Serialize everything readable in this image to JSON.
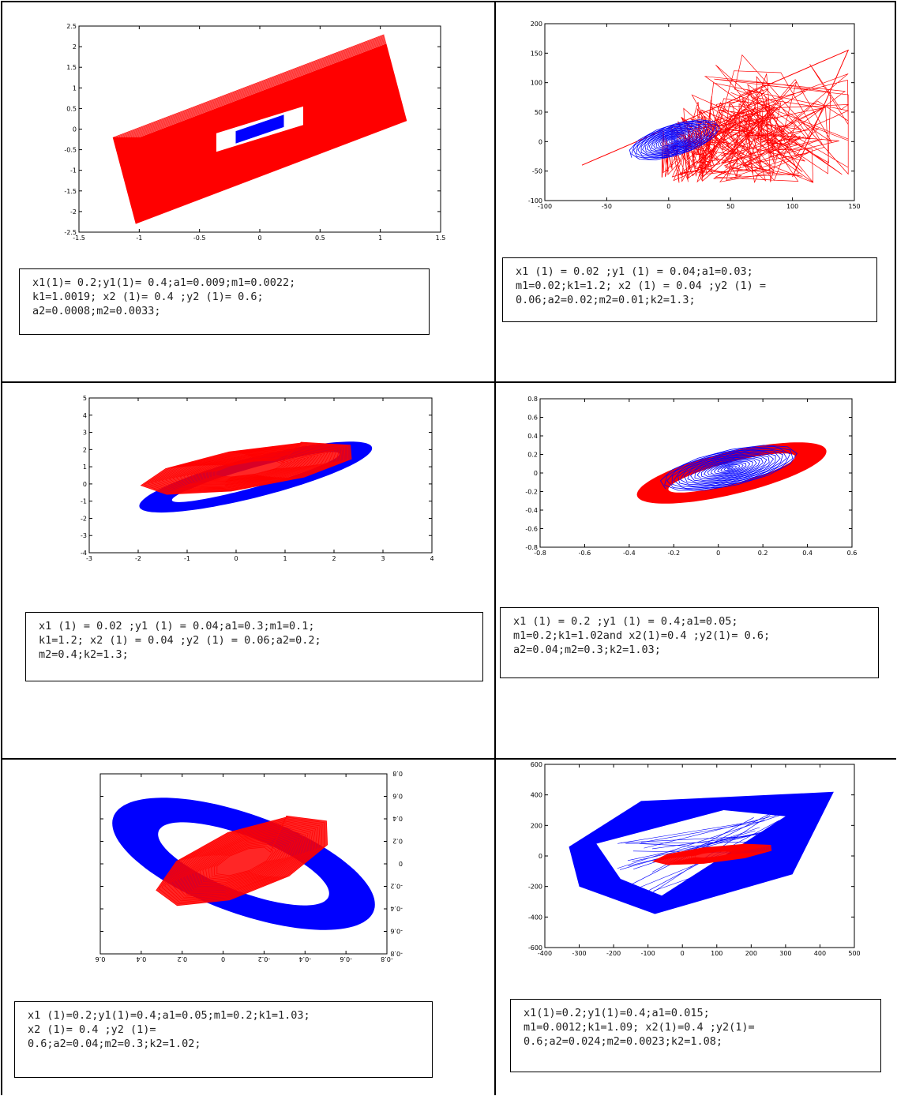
{
  "colors": {
    "red": "#ff0000",
    "blue": "#0000ff",
    "frame": "#000000"
  },
  "chart_data": [
    {
      "id": "p1",
      "type": "line",
      "title": "",
      "xlabel": "",
      "ylabel": "",
      "xlim": [
        -1.5,
        1.5
      ],
      "ylim": [
        -2.5,
        2.5
      ],
      "xticks": [
        "-1.5",
        "-1",
        "-0.5",
        "0",
        "0.5",
        "1",
        "1.5"
      ],
      "yticks": [
        "2.5",
        "2",
        "1.5",
        "1",
        "0.5",
        "0",
        "-0.5",
        "-1",
        "-1.5",
        "-2",
        "-2.5"
      ],
      "series": [
        {
          "color": "#ff0000",
          "shape": "rotated_band",
          "outer": [
            [
              -1.22,
              -0.2
            ],
            [
              1.03,
              2.3
            ],
            [
              1.22,
              0.2
            ],
            [
              -1.03,
              -2.3
            ]
          ],
          "inner": [
            [
              -0.36,
              -0.55
            ],
            [
              0.36,
              0.55
            ]
          ]
        },
        {
          "color": "#0000ff",
          "shape": "filled_rhombus",
          "points": [
            [
              -0.2,
              -0.35
            ],
            [
              0.2,
              0.35
            ]
          ]
        }
      ],
      "params": "x1(1)= 0.2;y1(1)= 0.4;a1=0.009;m1=0.0022;\nk1=1.0019; x2 (1)= 0.4 ;y2 (1)= 0.6;\na2=0.0008;m2=0.0033;"
    },
    {
      "id": "p2",
      "type": "line",
      "title": "",
      "xlabel": "",
      "ylabel": "",
      "xlim": [
        -100,
        150
      ],
      "ylim": [
        -100,
        200
      ],
      "xticks": [
        "-100",
        "-50",
        "0",
        "50",
        "100",
        "150"
      ],
      "yticks": [
        "200",
        "150",
        "100",
        "50",
        "0",
        "-50",
        "-100"
      ],
      "series": [
        {
          "color": "#ff0000",
          "shape": "chaotic_web",
          "extent": [
            [
              -70,
              -70
            ],
            [
              145,
              155
            ]
          ]
        },
        {
          "color": "#0000ff",
          "shape": "spiral",
          "extent": [
            [
              -30,
              -40
            ],
            [
              40,
              45
            ]
          ]
        }
      ],
      "params": "x1 (1) = 0.02 ;y1 (1) = 0.04;a1=0.03;\nm1=0.02;k1=1.2; x2 (1) = 0.04 ;y2 (1) =\n0.06;a2=0.02;m2=0.01;k2=1.3;"
    },
    {
      "id": "p3",
      "type": "line",
      "title": "",
      "xlabel": "",
      "ylabel": "",
      "xlim": [
        -3,
        4
      ],
      "ylim": [
        -4,
        5
      ],
      "xticks": [
        "-3",
        "-2",
        "-1",
        "0",
        "1",
        "2",
        "3",
        "4"
      ],
      "yticks": [
        "5",
        "4",
        "3",
        "2",
        "1",
        "0",
        "-1",
        "-2",
        "-3",
        "-4"
      ],
      "series": [
        {
          "color": "#0000ff",
          "shape": "elliptical_ring",
          "center": [
            0.4,
            0.4
          ],
          "rx": 3.0,
          "ry": 0.95,
          "angle_deg": 40,
          "width": 0.5
        },
        {
          "color": "#ff0000",
          "shape": "filled_blob",
          "extent": [
            [
              -2.0,
              -1.1
            ],
            [
              2.5,
              2.9
            ]
          ]
        }
      ],
      "params": "x1 (1) = 0.02 ;y1 (1) = 0.04;a1=0.3;m1=0.1;\nk1=1.2; x2 (1) = 0.04 ;y2 (1) = 0.06;a2=0.2;\nm2=0.4;k2=1.3;"
    },
    {
      "id": "p4",
      "type": "line",
      "title": "",
      "xlabel": "",
      "ylabel": "",
      "xlim": [
        -0.8,
        0.6
      ],
      "ylim": [
        -0.8,
        0.8
      ],
      "xticks": [
        "-0.8",
        "-0.6",
        "-0.4",
        "-0.2",
        "0",
        "0.2",
        "0.4",
        "0.6"
      ],
      "yticks": [
        "0.8",
        "0.6",
        "0.4",
        "0.2",
        "0",
        "-0.2",
        "-0.4",
        "-0.6",
        "-0.8"
      ],
      "series": [
        {
          "color": "#ff0000",
          "shape": "elliptical_ring",
          "center": [
            0.06,
            0.0
          ],
          "rx": 0.5,
          "ry": 0.2,
          "angle_deg": 35,
          "width": 0.1
        },
        {
          "color": "#0000ff",
          "shape": "spiral",
          "extent": [
            [
              -0.25,
              -0.25
            ],
            [
              0.35,
              0.35
            ]
          ]
        }
      ],
      "params": "x1 (1) = 0.2 ;y1 (1) = 0.4;a1=0.05;\nm1=0.2;k1=1.02and x2(1)=0.4 ;y2(1)= 0.6;\na2=0.04;m2=0.3;k2=1.03;"
    },
    {
      "id": "p5",
      "type": "line",
      "title": "",
      "xlabel": "",
      "ylabel": "",
      "xlim": [
        -0.8,
        0.8
      ],
      "ylim": [
        -0.8,
        0.8
      ],
      "xticks": [
        "0.6",
        "0.4",
        "0.2",
        "0",
        "-0.2",
        "-0.4",
        "-0.6",
        "-0.8"
      ],
      "yticks": [
        "0.8",
        "0.6",
        "0.4",
        "0.2",
        "0",
        "-0.2",
        "-0.4",
        "-0.6",
        "-0.8"
      ],
      "series": [
        {
          "color": "#0000ff",
          "shape": "elliptical_ring",
          "center": [
            0,
            0
          ],
          "rx": 0.85,
          "ry": 0.4,
          "angle_deg": -35,
          "width": 0.18
        },
        {
          "color": "#ff0000",
          "shape": "filled_blob",
          "extent": [
            [
              -0.5,
              -0.5
            ],
            [
              0.5,
              0.55
            ]
          ]
        }
      ],
      "params": "x1 (1)=0.2;y1(1)=0.4;a1=0.05;m1=0.2;k1=1.03;\nx2 (1)= 0.4 ;y2 (1)=\n0.6;a2=0.04;m2=0.3;k2=1.02;"
    },
    {
      "id": "p6",
      "type": "line",
      "title": "",
      "xlabel": "",
      "ylabel": "",
      "xlim": [
        -400,
        500
      ],
      "ylim": [
        -600,
        600
      ],
      "xticks": [
        "-400",
        "-300",
        "-200",
        "-100",
        "0",
        "100",
        "200",
        "300",
        "400",
        "500"
      ],
      "yticks": [
        "600",
        "400",
        "200",
        "0",
        "-200",
        "-400",
        "-600"
      ],
      "series": [
        {
          "color": "#0000ff",
          "shape": "parallelogram_band",
          "extent": [
            [
              -300,
              -380
            ],
            [
              440,
              420
            ]
          ]
        },
        {
          "color": "#ff0000",
          "shape": "filled_blob",
          "extent": [
            [
              -90,
              -80
            ],
            [
              270,
              100
            ]
          ]
        }
      ],
      "params": "x1(1)=0.2;y1(1)=0.4;a1=0.015;\nm1=0.0012;k1=1.09; x2(1)=0.4 ;y2(1)=\n0.6;a2=0.024;m2=0.0023;k2=1.08;"
    }
  ]
}
